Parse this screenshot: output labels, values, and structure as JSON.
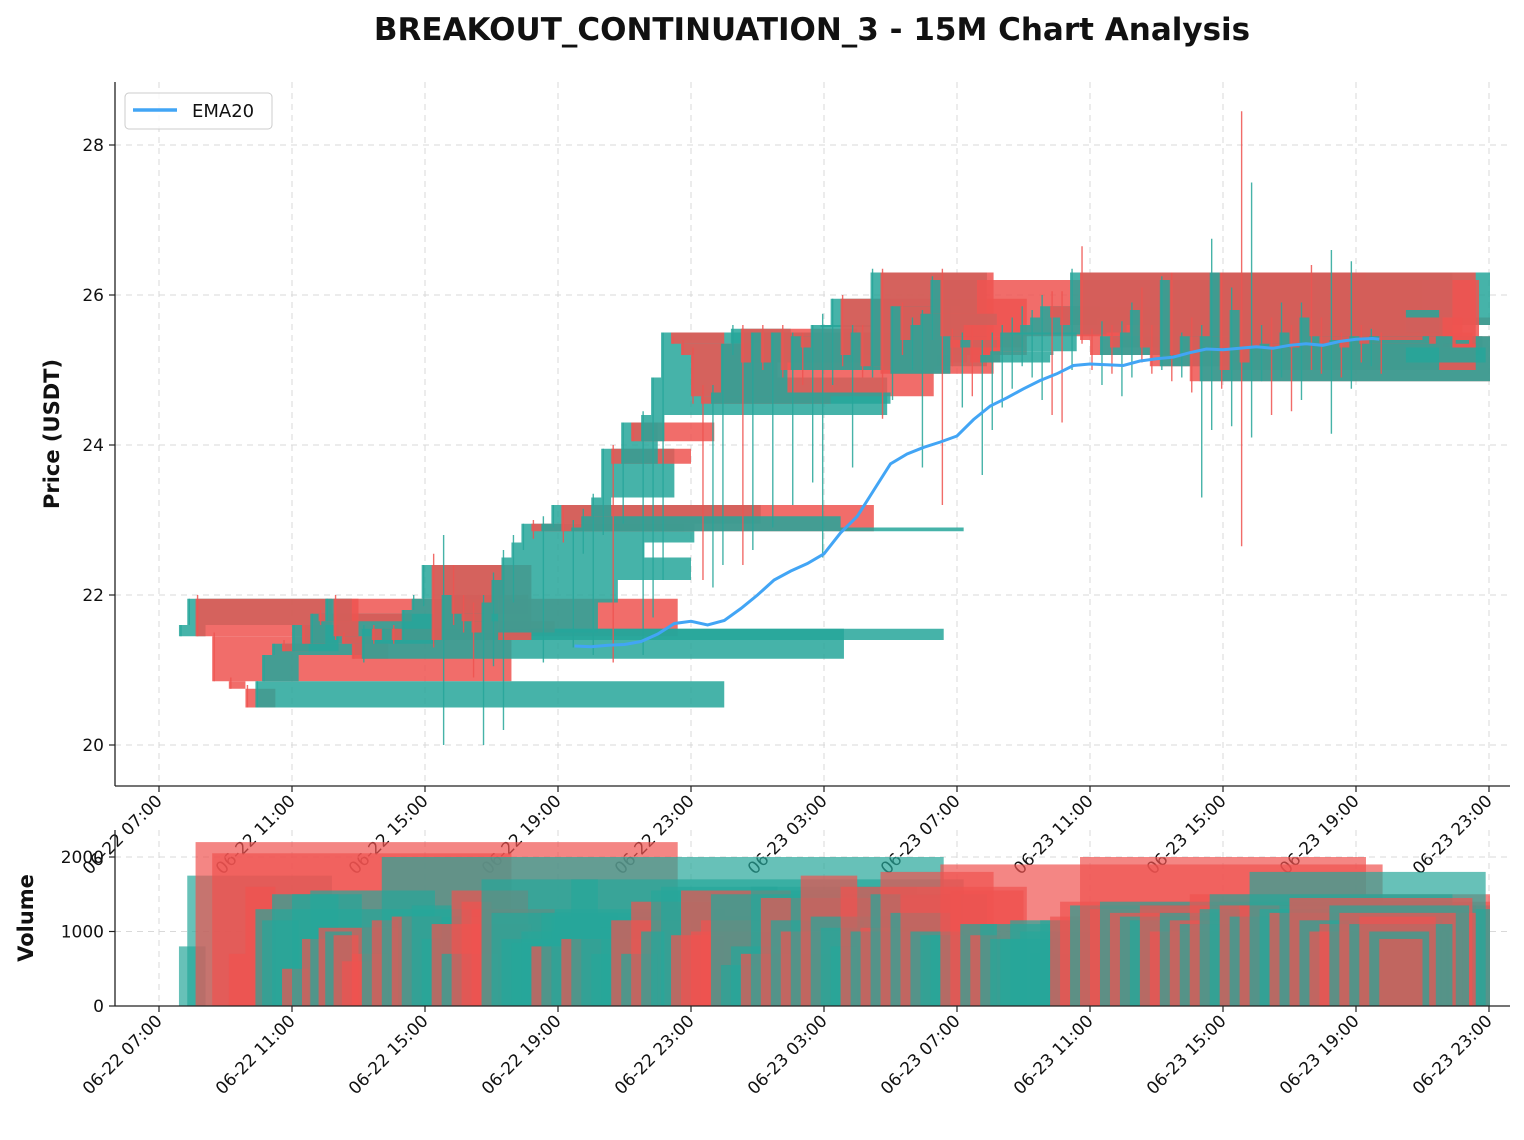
{
  "chart_data": {
    "type": "candlestick",
    "title": "BREAKOUT_CONTINUATION_3 - 15M Chart Analysis",
    "price_panel": {
      "ylabel": "Price (USDT)",
      "ylim": [
        19.45,
        28.85
      ],
      "yticks": [
        "20",
        "22",
        "24",
        "26",
        "28"
      ],
      "grid": true,
      "legend": {
        "placement": "top-left",
        "entries": [
          {
            "label": "EMA20",
            "color": "#42a5f5"
          }
        ]
      }
    },
    "volume_panel": {
      "ylabel": "Volume",
      "ylim": [
        0,
        2350
      ],
      "yticks": [
        "0",
        "1000",
        "2000"
      ],
      "grid": true
    },
    "x_axis": {
      "range_hours": [
        -1.3,
        40.7
      ],
      "tick_hours": [
        0,
        4,
        8,
        12,
        16,
        20,
        24,
        28,
        32,
        36,
        40
      ],
      "tick_labels": [
        "06-22 07:00",
        "06-22 11:00",
        "06-22 15:00",
        "06-22 19:00",
        "06-22 23:00",
        "06-23 03:00",
        "06-23 07:00",
        "06-23 11:00",
        "06-23 15:00",
        "06-23 19:00",
        "06-23 23:00"
      ]
    },
    "colors": {
      "up": "#26a69a",
      "down": "#ef5350",
      "ema": "#42a5f5"
    },
    "candles_columns": [
      "t_hours",
      "open",
      "high",
      "low",
      "close",
      "volume",
      "end_hours"
    ],
    "candles": [
      [
        0.6,
        21.45,
        21.6,
        21.45,
        21.6,
        800,
        1.4
      ],
      [
        0.85,
        21.6,
        21.95,
        21.6,
        21.95,
        1750,
        5.2
      ],
      [
        1.1,
        21.95,
        22.0,
        21.45,
        21.45,
        2200,
        15.6
      ],
      [
        1.6,
        21.45,
        21.5,
        20.85,
        20.85,
        2050,
        10.6
      ],
      [
        2.1,
        20.85,
        20.9,
        20.75,
        20.75,
        700,
        2.6
      ],
      [
        2.6,
        20.75,
        20.8,
        20.5,
        20.5,
        1600,
        3.5
      ],
      [
        2.9,
        20.5,
        20.85,
        20.5,
        20.85,
        1300,
        17.0
      ],
      [
        3.1,
        20.85,
        21.2,
        20.85,
        21.2,
        1150,
        4.2
      ],
      [
        3.4,
        21.2,
        21.35,
        21.2,
        21.35,
        1500,
        6.1
      ],
      [
        3.7,
        21.35,
        21.4,
        21.25,
        21.25,
        500,
        4.5
      ],
      [
        4.0,
        21.25,
        21.6,
        21.25,
        21.6,
        1500,
        5.4
      ],
      [
        4.3,
        21.6,
        21.6,
        21.35,
        21.35,
        900,
        5.0
      ],
      [
        4.55,
        21.35,
        21.75,
        21.35,
        21.75,
        1550,
        8.3
      ],
      [
        4.8,
        21.75,
        21.8,
        21.6,
        21.65,
        1050,
        7.6
      ],
      [
        5.0,
        21.65,
        21.95,
        21.65,
        21.95,
        1000,
        5.8
      ],
      [
        5.25,
        21.95,
        22.0,
        21.4,
        21.45,
        950,
        6.0
      ],
      [
        5.5,
        21.45,
        21.5,
        21.35,
        21.35,
        600,
        6.4
      ],
      [
        5.8,
        21.35,
        21.35,
        21.15,
        21.15,
        700,
        6.9
      ],
      [
        6.1,
        21.15,
        21.6,
        21.1,
        21.55,
        1050,
        20.6
      ],
      [
        6.4,
        21.55,
        21.6,
        21.35,
        21.4,
        1150,
        7.2
      ],
      [
        6.7,
        21.4,
        21.55,
        21.4,
        21.55,
        2000,
        23.6
      ],
      [
        7.0,
        21.55,
        21.6,
        21.35,
        21.4,
        1200,
        8.5
      ],
      [
        7.3,
        21.4,
        21.8,
        21.4,
        21.8,
        1200,
        10.0
      ],
      [
        7.6,
        21.8,
        22.0,
        21.8,
        21.95,
        1350,
        8.8
      ],
      [
        7.9,
        21.95,
        22.4,
        21.85,
        22.4,
        900,
        10.4
      ],
      [
        8.2,
        22.4,
        22.55,
        21.3,
        21.4,
        1100,
        11.2
      ],
      [
        8.5,
        21.4,
        22.8,
        20.0,
        22.0,
        700,
        10.2
      ],
      [
        8.8,
        22.0,
        22.4,
        21.6,
        21.75,
        1550,
        11.1
      ],
      [
        9.1,
        21.75,
        22.0,
        21.5,
        21.65,
        1400,
        10.0
      ],
      [
        9.4,
        21.65,
        21.9,
        20.9,
        21.5,
        1300,
        11.9
      ],
      [
        9.7,
        21.5,
        22.0,
        20.0,
        21.9,
        1700,
        13.2
      ],
      [
        10.0,
        21.9,
        22.3,
        21.05,
        22.2,
        1250,
        13.8
      ],
      [
        10.3,
        22.2,
        22.6,
        20.2,
        22.5,
        900,
        16.0
      ],
      [
        10.6,
        22.5,
        22.8,
        21.9,
        22.7,
        850,
        14.6
      ],
      [
        10.9,
        22.7,
        22.95,
        22.6,
        22.95,
        1000,
        16.1
      ],
      [
        11.2,
        22.95,
        23.0,
        22.75,
        22.85,
        800,
        12.2
      ],
      [
        11.5,
        22.85,
        23.05,
        21.1,
        22.95,
        1250,
        15.8
      ],
      [
        11.8,
        22.95,
        23.2,
        22.9,
        23.2,
        1200,
        18.1
      ],
      [
        12.1,
        23.2,
        23.2,
        22.7,
        22.85,
        900,
        21.5
      ],
      [
        12.4,
        22.85,
        23.0,
        21.3,
        22.9,
        1700,
        24.2
      ],
      [
        12.7,
        22.9,
        23.15,
        22.55,
        23.05,
        1050,
        20.5
      ],
      [
        13.0,
        23.05,
        23.35,
        21.2,
        23.3,
        700,
        13.6
      ],
      [
        13.3,
        23.3,
        23.95,
        22.8,
        23.95,
        1050,
        15.5
      ],
      [
        13.6,
        23.95,
        24.0,
        21.1,
        23.75,
        1150,
        16.0
      ],
      [
        13.9,
        23.75,
        24.3,
        22.95,
        24.3,
        700,
        15.0
      ],
      [
        14.2,
        24.3,
        24.3,
        24.05,
        24.05,
        1400,
        16.7
      ],
      [
        14.5,
        24.05,
        24.45,
        21.2,
        24.4,
        1000,
        15.2
      ],
      [
        14.8,
        24.4,
        24.9,
        21.7,
        24.9,
        1550,
        21.9
      ],
      [
        15.1,
        24.9,
        25.5,
        22.2,
        25.5,
        1600,
        18.6
      ],
      [
        15.4,
        25.5,
        25.45,
        25.35,
        25.35,
        950,
        17.0
      ],
      [
        15.7,
        25.35,
        25.4,
        25.2,
        25.2,
        1550,
        19.0
      ],
      [
        16.0,
        25.2,
        25.3,
        24.55,
        24.65,
        1000,
        23.3
      ],
      [
        16.3,
        24.65,
        24.8,
        22.2,
        24.55,
        1150,
        20.2
      ],
      [
        16.6,
        24.55,
        24.8,
        22.1,
        24.7,
        1500,
        22.0
      ],
      [
        16.9,
        24.7,
        25.35,
        22.4,
        25.35,
        550,
        18.9
      ],
      [
        17.2,
        25.35,
        25.6,
        25.2,
        25.55,
        800,
        19.0
      ],
      [
        17.5,
        25.55,
        25.6,
        22.4,
        25.1,
        700,
        21.0
      ],
      [
        17.8,
        25.1,
        25.5,
        22.6,
        25.5,
        1600,
        22.8
      ],
      [
        18.1,
        25.5,
        25.6,
        25.0,
        25.1,
        1450,
        24.3
      ],
      [
        18.4,
        25.1,
        25.5,
        22.9,
        25.5,
        1150,
        21.2
      ],
      [
        18.7,
        25.5,
        25.6,
        24.9,
        25.0,
        1000,
        22.0
      ],
      [
        19.0,
        25.0,
        25.5,
        23.2,
        25.45,
        1450,
        23.8
      ],
      [
        19.3,
        25.45,
        25.5,
        24.8,
        25.3,
        1750,
        21.0
      ],
      [
        19.6,
        25.3,
        25.6,
        23.5,
        25.6,
        1200,
        23.2
      ],
      [
        19.9,
        25.6,
        25.75,
        22.5,
        25.6,
        1050,
        21.4
      ],
      [
        20.2,
        25.6,
        25.95,
        24.8,
        25.95,
        800,
        22.0
      ],
      [
        20.5,
        25.95,
        26.0,
        25.05,
        25.2,
        1600,
        26.1
      ],
      [
        20.8,
        25.2,
        25.6,
        23.7,
        25.5,
        1000,
        23.0
      ],
      [
        21.1,
        25.5,
        25.6,
        24.9,
        25.05,
        1050,
        23.4
      ],
      [
        21.4,
        25.05,
        26.35,
        24.9,
        26.3,
        1500,
        24.9
      ],
      [
        21.7,
        26.3,
        26.35,
        24.35,
        24.95,
        1800,
        25.1
      ],
      [
        22.0,
        24.95,
        25.85,
        24.6,
        25.85,
        1250,
        23.8
      ],
      [
        22.3,
        25.85,
        25.9,
        25.2,
        25.4,
        1500,
        24.1
      ],
      [
        22.6,
        25.4,
        25.7,
        25.0,
        25.6,
        1000,
        24.2
      ],
      [
        22.9,
        25.6,
        25.8,
        23.7,
        25.75,
        950,
        25.2
      ],
      [
        23.2,
        25.75,
        26.25,
        25.4,
        26.2,
        950,
        24.6
      ],
      [
        23.5,
        26.2,
        26.35,
        23.2,
        25.45,
        1900,
        36.8
      ],
      [
        23.8,
        25.45,
        25.55,
        25.05,
        25.3,
        1550,
        26.0
      ],
      [
        24.1,
        25.3,
        25.5,
        24.5,
        25.4,
        1100,
        25.2
      ],
      [
        24.4,
        25.4,
        25.6,
        24.65,
        25.1,
        950,
        25.3
      ],
      [
        24.7,
        25.1,
        25.4,
        23.6,
        25.2,
        1100,
        26.8
      ],
      [
        25.0,
        25.2,
        25.5,
        24.2,
        25.25,
        900,
        26.9
      ],
      [
        25.3,
        25.25,
        25.6,
        24.5,
        25.5,
        900,
        27.6
      ],
      [
        25.6,
        25.5,
        25.7,
        24.75,
        25.5,
        1150,
        28.5
      ],
      [
        25.9,
        25.5,
        25.85,
        25.05,
        25.6,
        1000,
        29.1
      ],
      [
        26.2,
        25.6,
        25.8,
        24.9,
        25.7,
        700,
        28.2
      ],
      [
        26.5,
        25.7,
        26.0,
        24.6,
        25.85,
        1150,
        28.3
      ],
      [
        26.8,
        25.85,
        26.05,
        24.4,
        25.7,
        1200,
        31.2
      ],
      [
        27.1,
        25.7,
        26.05,
        24.3,
        25.6,
        1400,
        45.0
      ],
      [
        27.4,
        25.6,
        26.35,
        25.0,
        26.3,
        1350,
        45.8
      ],
      [
        27.7,
        26.3,
        26.65,
        25.35,
        25.4,
        2000,
        36.3
      ],
      [
        28.0,
        25.4,
        25.55,
        25.0,
        25.2,
        1300,
        34.3
      ],
      [
        28.3,
        25.2,
        25.65,
        24.8,
        25.45,
        1400,
        36.8
      ],
      [
        28.6,
        25.45,
        25.6,
        24.95,
        25.3,
        1250,
        35.5
      ],
      [
        28.9,
        25.3,
        25.65,
        24.65,
        25.5,
        1200,
        37.0
      ],
      [
        29.2,
        25.5,
        25.9,
        24.9,
        25.8,
        1150,
        37.5
      ],
      [
        29.5,
        25.8,
        26.1,
        25.1,
        25.3,
        1350,
        38.4
      ],
      [
        29.8,
        25.3,
        25.6,
        24.95,
        25.05,
        1000,
        38.0
      ],
      [
        30.1,
        25.05,
        26.25,
        25.0,
        26.2,
        1250,
        38.0
      ],
      [
        30.4,
        26.2,
        26.3,
        24.85,
        25.2,
        1150,
        39.7
      ],
      [
        30.7,
        25.2,
        25.5,
        24.9,
        25.45,
        1100,
        39.8
      ],
      [
        31.0,
        25.45,
        25.7,
        24.7,
        24.85,
        1500,
        40.2
      ],
      [
        31.3,
        24.85,
        25.6,
        23.3,
        25.45,
        1300,
        40.1
      ],
      [
        31.6,
        25.45,
        26.75,
        24.2,
        26.3,
        1500,
        38.9
      ],
      [
        31.9,
        26.3,
        26.3,
        24.75,
        25.0,
        1350,
        39.6
      ],
      [
        32.2,
        25.0,
        26.1,
        24.25,
        25.8,
        1200,
        38.5
      ],
      [
        32.5,
        25.8,
        28.45,
        22.65,
        25.1,
        1350,
        37.5
      ],
      [
        32.8,
        25.1,
        27.5,
        24.1,
        25.3,
        1800,
        39.9
      ],
      [
        33.1,
        25.3,
        25.6,
        24.85,
        25.35,
        1300,
        39.2
      ],
      [
        33.4,
        25.35,
        25.7,
        24.4,
        25.3,
        1250,
        39.6
      ],
      [
        33.7,
        25.3,
        25.9,
        24.9,
        25.5,
        1350,
        38.8
      ],
      [
        34.0,
        25.5,
        25.6,
        24.45,
        25.3,
        1450,
        39.5
      ],
      [
        34.3,
        25.3,
        25.9,
        24.6,
        25.7,
        1150,
        38.6
      ],
      [
        34.6,
        25.7,
        26.4,
        25.0,
        25.45,
        1000,
        39.2
      ],
      [
        34.9,
        25.45,
        25.7,
        24.95,
        25.35,
        1100,
        38.7
      ],
      [
        35.2,
        25.35,
        26.6,
        24.15,
        25.4,
        1350,
        39.4
      ],
      [
        35.5,
        25.4,
        25.5,
        24.9,
        25.3,
        1250,
        39.0
      ],
      [
        35.8,
        25.3,
        26.45,
        24.75,
        25.45,
        1100,
        38.9
      ],
      [
        36.1,
        25.45,
        25.6,
        25.1,
        25.35,
        1200,
        38.4
      ],
      [
        36.4,
        25.35,
        25.55,
        25.05,
        25.45,
        1000,
        38.2
      ],
      [
        36.7,
        25.45,
        25.5,
        24.95,
        25.4,
        900,
        38.0
      ]
    ],
    "ema20": {
      "x_hours": [
        12.5,
        13.0,
        13.5,
        14.0,
        14.5,
        15.0,
        15.5,
        16.0,
        16.5,
        17.0,
        17.5,
        18.0,
        18.5,
        19.0,
        19.5,
        20.0,
        20.5,
        21.0,
        21.5,
        22.0,
        22.5,
        23.0,
        23.5,
        24.0,
        24.5,
        25.0,
        25.5,
        26.0,
        26.5,
        27.0,
        27.5,
        28.0,
        28.5,
        29.0,
        29.5,
        30.0,
        30.5,
        31.0,
        31.5,
        32.0,
        32.5,
        33.0,
        33.5,
        34.0,
        34.5,
        35.0,
        35.5,
        36.0,
        36.5,
        36.7
      ],
      "values": [
        21.32,
        21.31,
        21.33,
        21.34,
        21.38,
        21.48,
        21.62,
        21.65,
        21.6,
        21.66,
        21.82,
        22.0,
        22.2,
        22.32,
        22.42,
        22.55,
        22.83,
        23.05,
        23.4,
        23.75,
        23.88,
        23.97,
        24.04,
        24.12,
        24.34,
        24.52,
        24.63,
        24.75,
        24.86,
        24.95,
        25.06,
        25.08,
        25.07,
        25.06,
        25.12,
        25.15,
        25.17,
        25.23,
        25.28,
        25.27,
        25.29,
        25.31,
        25.29,
        25.33,
        25.35,
        25.33,
        25.38,
        25.41,
        25.42,
        25.41
      ]
    }
  }
}
